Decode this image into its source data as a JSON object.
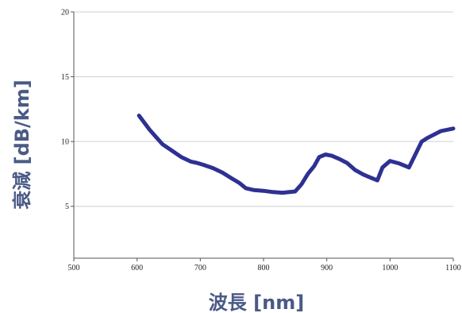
{
  "chart_data": {
    "type": "line",
    "xlabel": "波長 [nm]",
    "ylabel": "衰減 [dB/km]",
    "xlim": [
      500,
      1100
    ],
    "ylim": [
      1,
      20
    ],
    "x_ticks": [
      "500",
      "600",
      "700",
      "800",
      "900",
      "1000",
      "1100"
    ],
    "y_ticks": [
      "5",
      "10",
      "15",
      "20"
    ],
    "grid": "horizontal",
    "series": [
      {
        "color": "#2e3192",
        "x": [
          603,
          620,
          640,
          655,
          670,
          685,
          695,
          705,
          720,
          735,
          750,
          762,
          772,
          785,
          800,
          815,
          830,
          850,
          860,
          870,
          880,
          888,
          898,
          908,
          920,
          932,
          945,
          958,
          970,
          980,
          988,
          1000,
          1015,
          1030,
          1040,
          1050,
          1060,
          1080,
          1100
        ],
        "y": [
          12.0,
          10.9,
          9.8,
          9.3,
          8.8,
          8.45,
          8.35,
          8.2,
          7.95,
          7.6,
          7.15,
          6.8,
          6.4,
          6.25,
          6.2,
          6.1,
          6.05,
          6.15,
          6.7,
          7.5,
          8.1,
          8.8,
          9.0,
          8.9,
          8.65,
          8.35,
          7.8,
          7.45,
          7.2,
          7.0,
          8.0,
          8.5,
          8.3,
          8.0,
          9.0,
          10.0,
          10.3,
          10.8,
          11.0
        ]
      }
    ]
  }
}
